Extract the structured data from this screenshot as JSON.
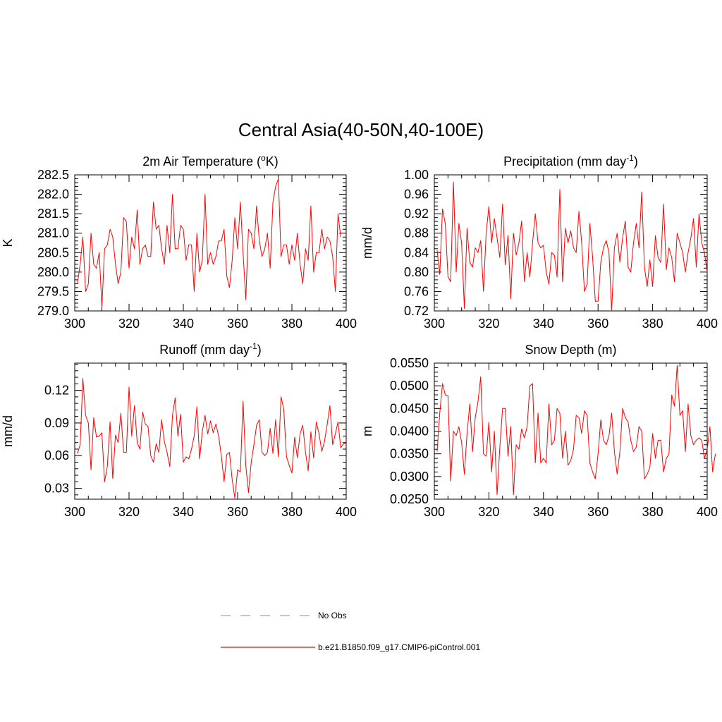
{
  "main_title": "Central Asia(40-50N,40-100E)",
  "colors": {
    "model": "#ff0000",
    "obs": "#9999ff",
    "axis": "#000000"
  },
  "legend": {
    "obs_label": "No Obs",
    "model_label": "b.e21.B1850.f09_g17.CMIP6-piControl.001"
  },
  "chart_data": [
    {
      "type": "line",
      "title": "2m Air Temperature (",
      "title_sup": "o",
      "title_after": "K)",
      "ylabel": "K",
      "xlabel": "",
      "xlim": [
        300,
        400
      ],
      "ylim": [
        279.0,
        282.5
      ],
      "xticks": [
        300,
        320,
        340,
        360,
        380,
        400
      ],
      "yticks": [
        279.0,
        279.5,
        280.0,
        280.5,
        281.0,
        281.5,
        282.0,
        282.5
      ],
      "ytick_labels": [
        "279.0",
        "279.5",
        "280.0",
        "280.5",
        "281.0",
        "281.5",
        "282.0",
        "282.5"
      ],
      "x_start": 301,
      "series": [
        {
          "name": "b.e21.B1850.f09_g17.CMIP6-piControl.001",
          "values": [
            279.7,
            280.2,
            280.9,
            279.5,
            279.7,
            281.0,
            280.2,
            280.1,
            280.5,
            279.1,
            280.6,
            280.7,
            281.1,
            280.9,
            280.2,
            279.7,
            280.0,
            281.4,
            281.3,
            280.1,
            280.9,
            280.6,
            281.6,
            280.2,
            280.6,
            280.7,
            280.4,
            280.4,
            281.8,
            281.1,
            281.2,
            280.6,
            280.2,
            281.2,
            280.5,
            282.0,
            280.6,
            280.6,
            281.2,
            281.1,
            280.3,
            280.7,
            280.7,
            279.5,
            281.0,
            280.0,
            280.3,
            282.0,
            280.2,
            280.5,
            280.2,
            280.4,
            280.8,
            280.8,
            281.1,
            279.9,
            279.6,
            280.3,
            281.4,
            280.6,
            281.8,
            280.5,
            279.3,
            281.1,
            281.0,
            280.6,
            281.7,
            280.8,
            280.4,
            280.6,
            281.0,
            280.1,
            281.8,
            282.2,
            282.4,
            280.4,
            280.7,
            280.7,
            280.2,
            280.7,
            280.3,
            281.0,
            280.2,
            279.7,
            280.6,
            280.3,
            281.7,
            280.0,
            280.5,
            280.5,
            281.1,
            280.6,
            280.9,
            280.8,
            280.4,
            279.5,
            281.5,
            280.9
          ]
        }
      ]
    },
    {
      "type": "line",
      "title": "Precipitation (mm day",
      "title_sup": "-1",
      "title_after": ")",
      "ylabel": "mm/d",
      "xlabel": "",
      "xlim": [
        300,
        400
      ],
      "ylim": [
        0.72,
        1.0
      ],
      "xticks": [
        300,
        320,
        340,
        360,
        380,
        400
      ],
      "yticks": [
        0.72,
        0.76,
        0.8,
        0.84,
        0.88,
        0.92,
        0.96,
        1.0
      ],
      "ytick_labels": [
        "0.72",
        "0.76",
        "0.80",
        "0.84",
        "0.88",
        "0.92",
        "0.96",
        "1.00"
      ],
      "x_start": 301,
      "series": [
        {
          "name": "b.e21.B1850.f09_g17.CMIP6-piControl.001",
          "values": [
            0.845,
            0.795,
            0.93,
            0.9,
            0.79,
            0.78,
            0.985,
            0.8,
            0.9,
            0.86,
            0.725,
            0.89,
            0.82,
            0.81,
            0.85,
            0.84,
            0.865,
            0.76,
            0.88,
            0.935,
            0.86,
            0.91,
            0.87,
            0.83,
            0.94,
            0.815,
            0.875,
            0.745,
            0.88,
            0.835,
            0.86,
            0.905,
            0.78,
            0.84,
            0.79,
            0.86,
            0.92,
            0.86,
            0.85,
            0.855,
            0.8,
            0.775,
            0.84,
            0.835,
            0.79,
            0.97,
            0.78,
            0.89,
            0.86,
            0.885,
            0.85,
            0.84,
            0.925,
            0.86,
            0.76,
            0.775,
            0.9,
            0.83,
            0.74,
            0.74,
            0.82,
            0.85,
            0.865,
            0.84,
            0.72,
            0.85,
            0.88,
            0.82,
            0.87,
            0.905,
            0.81,
            0.8,
            0.86,
            0.9,
            0.85,
            0.965,
            0.81,
            0.77,
            0.825,
            0.77,
            0.875,
            0.83,
            0.82,
            0.94,
            0.805,
            0.85,
            0.83,
            0.78,
            0.88,
            0.86,
            0.84,
            0.8,
            0.84,
            0.87,
            0.91,
            0.81,
            0.92,
            0.86,
            0.84,
            0.8
          ]
        }
      ]
    },
    {
      "type": "line",
      "title": "Runoff (mm day",
      "title_sup": "-1",
      "title_after": ")",
      "ylabel": "mm/d",
      "xlabel": "",
      "xlim": [
        300,
        400
      ],
      "ylim": [
        0.02,
        0.145
      ],
      "xticks": [
        300,
        320,
        340,
        360,
        380,
        400
      ],
      "yticks": [
        0.03,
        0.06,
        0.09,
        0.12
      ],
      "ytick_labels": [
        "0.03",
        "0.06",
        "0.09",
        "0.12"
      ],
      "x_start": 301,
      "series": [
        {
          "name": "b.e21.B1850.f09_g17.CMIP6-piControl.001",
          "values": [
            0.062,
            0.07,
            0.131,
            0.097,
            0.09,
            0.047,
            0.095,
            0.077,
            0.078,
            0.081,
            0.036,
            0.05,
            0.091,
            0.039,
            0.079,
            0.072,
            0.099,
            0.063,
            0.063,
            0.123,
            0.078,
            0.106,
            0.072,
            0.066,
            0.1,
            0.089,
            0.087,
            0.06,
            0.054,
            0.071,
            0.063,
            0.093,
            0.073,
            0.063,
            0.05,
            0.097,
            0.113,
            0.078,
            0.098,
            0.054,
            0.059,
            0.057,
            0.066,
            0.078,
            0.105,
            0.057,
            0.082,
            0.097,
            0.08,
            0.092,
            0.081,
            0.089,
            0.078,
            0.06,
            0.036,
            0.061,
            0.063,
            0.038,
            0.021,
            0.047,
            0.045,
            0.11,
            0.051,
            0.026,
            0.054,
            0.07,
            0.088,
            0.093,
            0.063,
            0.06,
            0.063,
            0.085,
            0.062,
            0.093,
            0.059,
            0.114,
            0.103,
            0.059,
            0.051,
            0.044,
            0.077,
            0.058,
            0.08,
            0.088,
            0.063,
            0.046,
            0.082,
            0.058,
            0.091,
            0.08,
            0.064,
            0.073,
            0.089,
            0.106,
            0.07,
            0.08,
            0.091,
            0.067,
            0.071,
            0.071
          ]
        }
      ]
    },
    {
      "type": "line",
      "title": "Snow Depth (m)",
      "title_sup": "",
      "title_after": "",
      "ylabel": "m",
      "xlabel": "",
      "xlim": [
        300,
        400
      ],
      "ylim": [
        0.025,
        0.055
      ],
      "xticks": [
        300,
        320,
        340,
        360,
        380,
        400
      ],
      "yticks": [
        0.025,
        0.03,
        0.035,
        0.04,
        0.045,
        0.05,
        0.055
      ],
      "ytick_labels": [
        "0.0250",
        "0.0300",
        "0.0350",
        "0.0400",
        "0.0450",
        "0.0500",
        "0.0550"
      ],
      "x_start": 301,
      "series": [
        {
          "name": "b.e21.B1850.f09_g17.CMIP6-piControl.001",
          "values": [
            0.0355,
            0.044,
            0.0505,
            0.048,
            0.0478,
            0.029,
            0.04,
            0.039,
            0.041,
            0.0375,
            0.0305,
            0.0395,
            0.046,
            0.0355,
            0.043,
            0.0465,
            0.052,
            0.035,
            0.0345,
            0.042,
            0.031,
            0.04,
            0.026,
            0.0365,
            0.045,
            0.045,
            0.0345,
            0.041,
            0.026,
            0.037,
            0.036,
            0.0405,
            0.0385,
            0.041,
            0.05,
            0.0505,
            0.033,
            0.044,
            0.033,
            0.034,
            0.033,
            0.046,
            0.037,
            0.038,
            0.045,
            0.044,
            0.034,
            0.04,
            0.0325,
            0.0335,
            0.036,
            0.0435,
            0.043,
            0.0395,
            0.0445,
            0.0435,
            0.033,
            0.031,
            0.0295,
            0.035,
            0.0425,
            0.038,
            0.037,
            0.039,
            0.044,
            0.0355,
            0.0305,
            0.0355,
            0.045,
            0.043,
            0.042,
            0.038,
            0.0355,
            0.0365,
            0.041,
            0.04,
            0.0295,
            0.0305,
            0.032,
            0.0395,
            0.034,
            0.038,
            0.038,
            0.031,
            0.034,
            0.035,
            0.048,
            0.0455,
            0.0545,
            0.0435,
            0.0445,
            0.0355,
            0.046,
            0.039,
            0.037,
            0.038,
            0.0385,
            0.038,
            0.034,
            0.036,
            0.041,
            0.031,
            0.035
          ]
        }
      ]
    }
  ]
}
